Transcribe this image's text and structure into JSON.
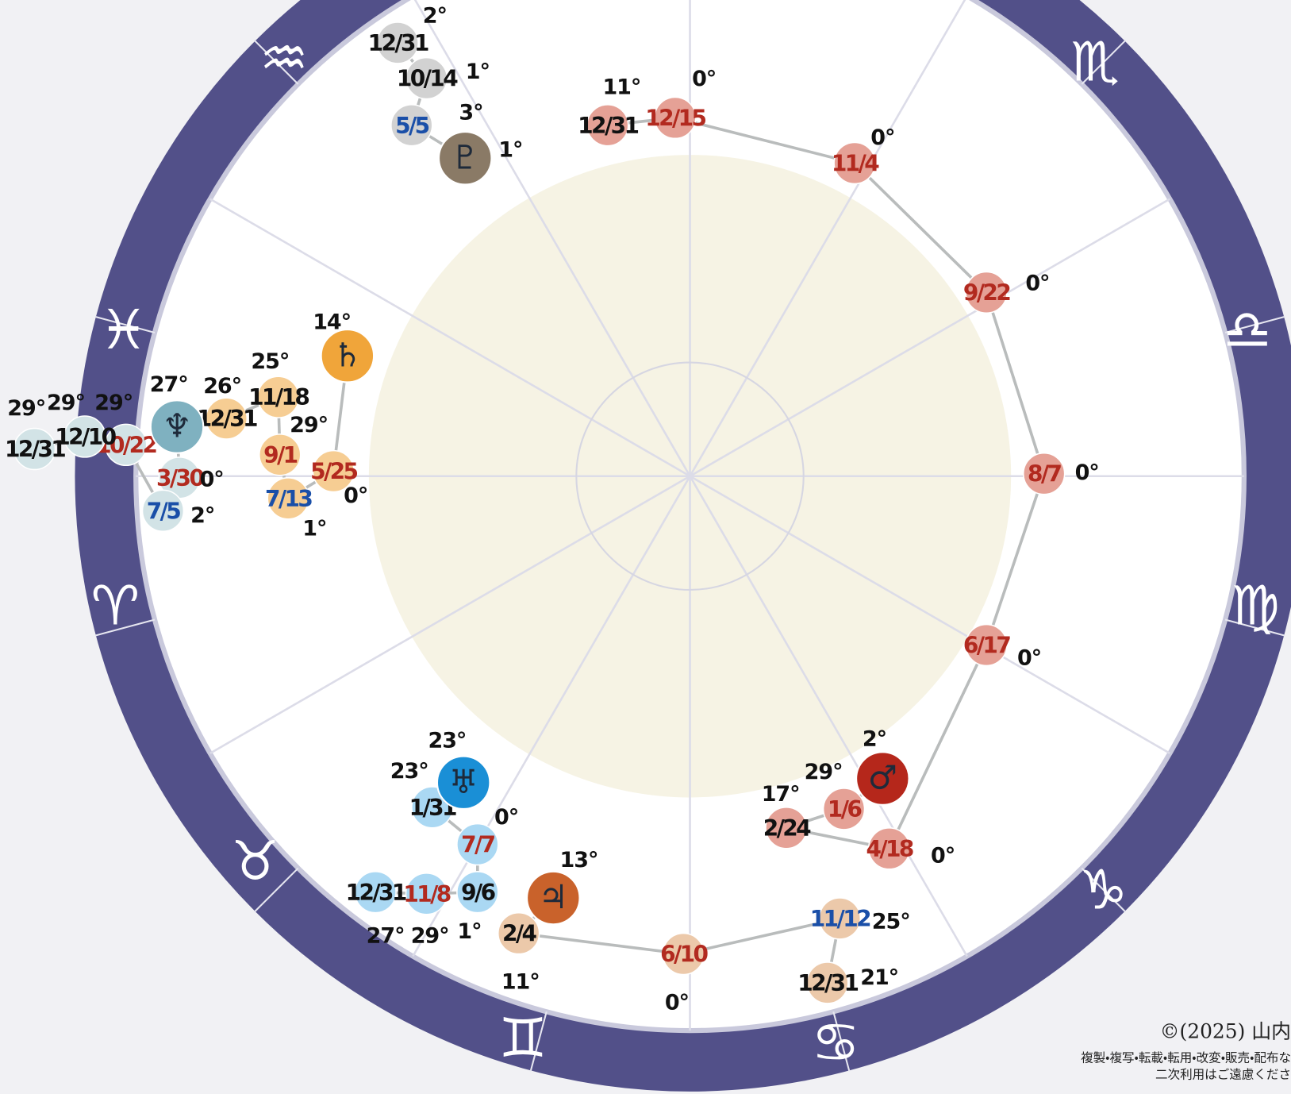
{
  "zodiac": [
    "♒",
    "♏",
    "♎",
    "♍",
    "♑",
    "♋",
    "♊",
    "♉",
    "♈",
    "♓"
  ],
  "tracks": [
    {
      "glyph": "♇",
      "glyph_degree": "1°",
      "points": [
        {
          "date": "12/31",
          "degree": "2°",
          "color": "#111"
        },
        {
          "date": "10/14",
          "degree": "1°",
          "color": "#111"
        },
        {
          "date": "5/5",
          "degree": "3°",
          "color": "#1a4fa8"
        }
      ]
    },
    {
      "glyph": "♂",
      "glyph_degree": "2°",
      "points": [
        {
          "date": "12/31",
          "degree": "11°",
          "color": "#111"
        },
        {
          "date": "12/15",
          "degree": "0°",
          "color": "#b22a1f"
        },
        {
          "date": "11/4",
          "degree": "0°",
          "color": "#b22a1f"
        },
        {
          "date": "9/22",
          "degree": "0°",
          "color": "#b22a1f"
        },
        {
          "date": "8/7",
          "degree": "0°",
          "color": "#b22a1f"
        },
        {
          "date": "6/17",
          "degree": "0°",
          "color": "#b22a1f"
        },
        {
          "date": "4/18",
          "degree": "0°",
          "color": "#b22a1f"
        },
        {
          "date": "2/24",
          "degree": "17°",
          "color": "#111"
        },
        {
          "date": "1/6",
          "degree": "29°",
          "color": "#b22a1f"
        }
      ]
    },
    {
      "glyph": "♄",
      "glyph_degree": "14°",
      "points": [
        {
          "date": "11/18",
          "degree": "25°",
          "color": "#111"
        },
        {
          "date": "12/31",
          "degree": "26°",
          "color": "#111"
        },
        {
          "date": "9/1",
          "degree": "29°",
          "color": "#b22a1f"
        },
        {
          "date": "5/25",
          "degree": "0°",
          "color": "#b22a1f"
        },
        {
          "date": "7/13",
          "degree": "1°",
          "color": "#1a4fa8"
        }
      ]
    },
    {
      "glyph": "♆",
      "glyph_degree": "27°",
      "points": [
        {
          "date": "3/30",
          "degree": "0°",
          "color": "#b22a1f"
        },
        {
          "date": "7/5",
          "degree": "2°",
          "color": "#1a4fa8"
        },
        {
          "date": "10/22",
          "degree": "29°",
          "color": "#b22a1f"
        },
        {
          "date": "12/10",
          "degree": "29°",
          "color": "#111"
        },
        {
          "date": "12/31",
          "degree": "29°",
          "color": "#111"
        }
      ]
    },
    {
      "glyph": "♅",
      "glyph_degree": "23°",
      "points": [
        {
          "date": "1/31",
          "degree": "23°",
          "color": "#111"
        },
        {
          "date": "7/7",
          "degree": "0°",
          "color": "#b22a1f"
        },
        {
          "date": "9/6",
          "degree": "1°",
          "color": "#111"
        },
        {
          "date": "11/8",
          "degree": "29°",
          "color": "#b22a1f"
        },
        {
          "date": "12/31",
          "degree": "27°",
          "color": "#111"
        }
      ]
    },
    {
      "glyph": "♃",
      "glyph_degree": "13°",
      "points": [
        {
          "date": "2/4",
          "degree": "11°",
          "color": "#111"
        },
        {
          "date": "6/10",
          "degree": "0°",
          "color": "#b22a1f"
        },
        {
          "date": "11/12",
          "degree": "25°",
          "color": "#1a4fa8"
        },
        {
          "date": "12/31",
          "degree": "21°",
          "color": "#111"
        }
      ]
    }
  ],
  "copyright": {
    "line1": "©(2025) 山内",
    "line2": "複製・複写・転載・転用・改変・販売・配布な",
    "line3": "二次利用はご遠慮くださ"
  }
}
